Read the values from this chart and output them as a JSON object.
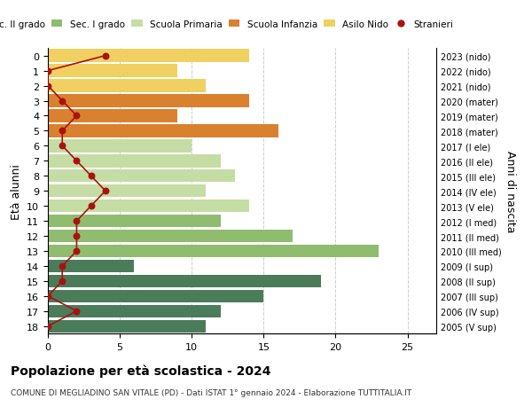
{
  "ages": [
    18,
    17,
    16,
    15,
    14,
    13,
    12,
    11,
    10,
    9,
    8,
    7,
    6,
    5,
    4,
    3,
    2,
    1,
    0
  ],
  "years": [
    "2005 (V sup)",
    "2006 (IV sup)",
    "2007 (III sup)",
    "2008 (II sup)",
    "2009 (I sup)",
    "2010 (III med)",
    "2011 (II med)",
    "2012 (I med)",
    "2013 (V ele)",
    "2014 (IV ele)",
    "2015 (III ele)",
    "2016 (II ele)",
    "2017 (I ele)",
    "2018 (mater)",
    "2019 (mater)",
    "2020 (mater)",
    "2021 (nido)",
    "2022 (nido)",
    "2023 (nido)"
  ],
  "bar_values": [
    11,
    12,
    15,
    19,
    6,
    23,
    17,
    12,
    14,
    11,
    13,
    12,
    10,
    16,
    9,
    14,
    11,
    9,
    14
  ],
  "bar_colors": [
    "#4a7c59",
    "#4a7c59",
    "#4a7c59",
    "#4a7c59",
    "#4a7c59",
    "#8fbc6e",
    "#8fbc6e",
    "#8fbc6e",
    "#c5dda4",
    "#c5dda4",
    "#c5dda4",
    "#c5dda4",
    "#c5dda4",
    "#d9812e",
    "#d9812e",
    "#d9812e",
    "#f0d060",
    "#f0d060",
    "#f0d060"
  ],
  "stranieri_values": [
    0,
    2,
    0,
    1,
    1,
    2,
    2,
    2,
    3,
    4,
    3,
    2,
    1,
    1,
    2,
    1,
    0,
    0,
    4
  ],
  "title": "Popolazione per età scolastica - 2024",
  "subtitle": "COMUNE DI MEGLIADINO SAN VITALE (PD) - Dati ISTAT 1° gennaio 2024 - Elaborazione TUTTITALIA.IT",
  "ylabel": "Età alunni",
  "ylabel_right": "Anni di nascita",
  "xlim": [
    0,
    27
  ],
  "xticks": [
    0,
    5,
    10,
    15,
    20,
    25
  ],
  "color_sec2": "#4a7c59",
  "color_sec1": "#8fbc6e",
  "color_prim": "#c5dda4",
  "color_inf": "#d9812e",
  "color_nido": "#f0d060",
  "color_stranieri": "#aa1111",
  "legend_labels": [
    "Sec. II grado",
    "Sec. I grado",
    "Scuola Primaria",
    "Scuola Infanzia",
    "Asilo Nido",
    "Stranieri"
  ],
  "background_color": "#ffffff",
  "grid_color": "#cccccc"
}
